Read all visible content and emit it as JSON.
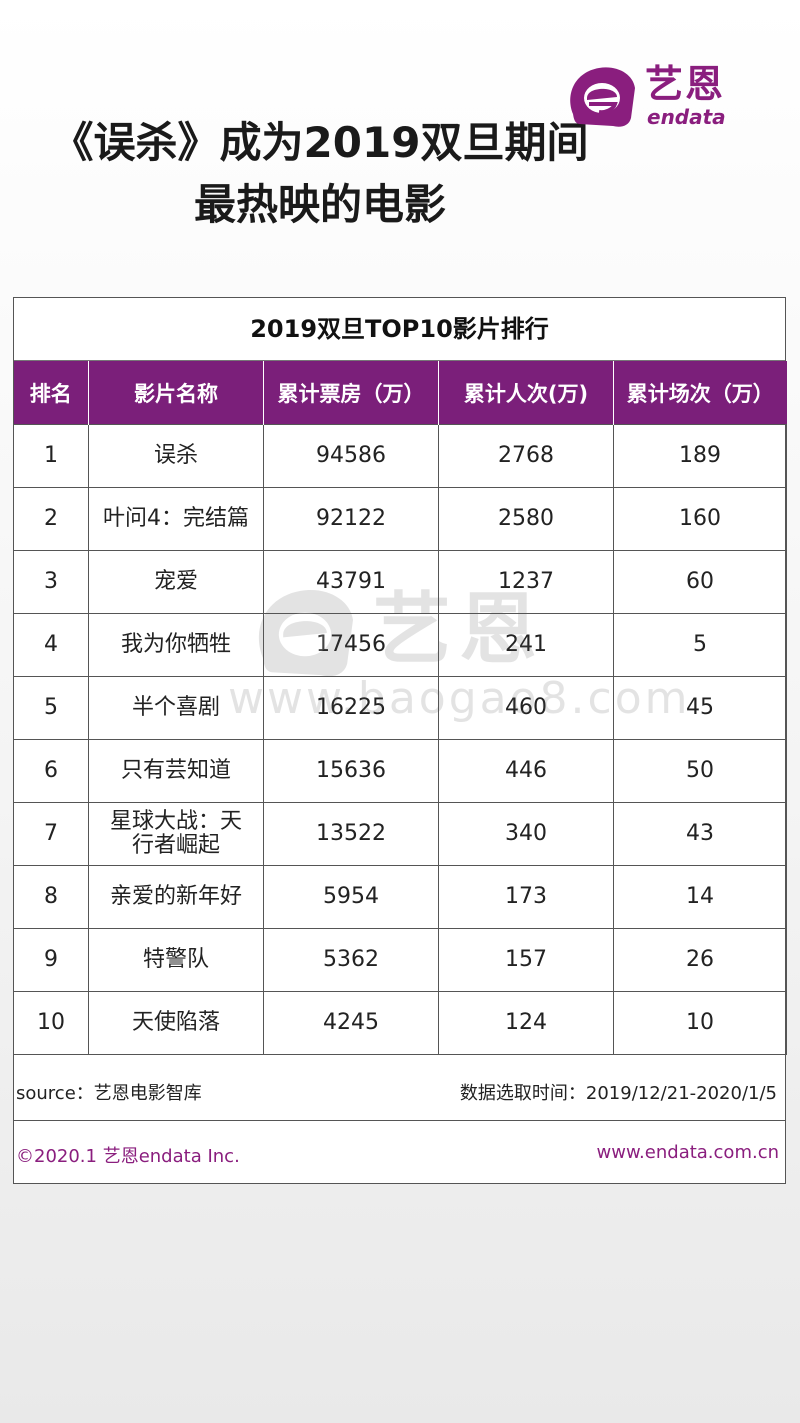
{
  "headline": "《误杀》成为2019双旦期间最热映的电影",
  "logo": {
    "cn": "艺恩",
    "en": "endata",
    "accent_color": "#8a1e7e"
  },
  "table": {
    "title": "2019双旦TOP10影片排行",
    "header_color": "#7b1f7a",
    "columns": [
      "排名",
      "影片名称",
      "累计票房（万）",
      "累计人次(万)",
      "累计场次（万）"
    ],
    "rows": [
      {
        "rank": "1",
        "name": "误杀",
        "box_office": "94586",
        "admissions": "2768",
        "screenings": "189"
      },
      {
        "rank": "2",
        "name": "叶问4：完结篇",
        "box_office": "92122",
        "admissions": "2580",
        "screenings": "160"
      },
      {
        "rank": "3",
        "name": "宠爱",
        "box_office": "43791",
        "admissions": "1237",
        "screenings": "60"
      },
      {
        "rank": "4",
        "name": "我为你牺牲",
        "box_office": "17456",
        "admissions": "241",
        "screenings": "5"
      },
      {
        "rank": "5",
        "name": "半个喜剧",
        "box_office": "16225",
        "admissions": "460",
        "screenings": "45"
      },
      {
        "rank": "6",
        "name": "只有芸知道",
        "box_office": "15636",
        "admissions": "446",
        "screenings": "50"
      },
      {
        "rank": "7",
        "name": "星球大战：天行者崛起",
        "box_office": "13522",
        "admissions": "340",
        "screenings": "43"
      },
      {
        "rank": "8",
        "name": "亲爱的新年好",
        "box_office": "5954",
        "admissions": "173",
        "screenings": "14"
      },
      {
        "rank": "9",
        "name": "特警队",
        "box_office": "5362",
        "admissions": "157",
        "screenings": "26"
      },
      {
        "rank": "10",
        "name": "天使陷落",
        "box_office": "4245",
        "admissions": "124",
        "screenings": "10"
      }
    ]
  },
  "source": "source：艺恩电影智库",
  "date_range": "数据选取时间：2019/12/21-2020/1/5",
  "copyright": "©2020.1  艺恩endata Inc.",
  "website": "www.endata.com.cn",
  "watermark": {
    "cn": "艺恩",
    "url": "www.baogao8.com"
  }
}
